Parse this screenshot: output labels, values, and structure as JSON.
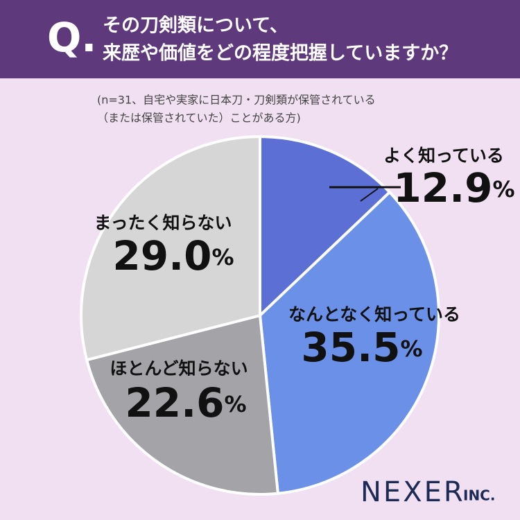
{
  "chart_data": {
    "type": "pie",
    "title_badge": "Q.",
    "title": [
      "その刀剣類について、",
      "来歴や価値をどの程度把握していますか？"
    ],
    "note": [
      "(n=31、自宅や実家に日本刀・刀剣類が保管されている",
      "（または保管されていた）ことがある方)"
    ],
    "categories": [
      "よく知っている",
      "なんとなく知っている",
      "ほとんど知らない",
      "まったく知らない"
    ],
    "values": [
      12.9,
      35.5,
      22.6,
      29.0
    ],
    "value_labels": [
      "12.9",
      "35.5",
      "22.6",
      "29.0"
    ],
    "unit": "%",
    "colors": [
      "#5b6fd4",
      "#6a90e8",
      "#a4a4a8",
      "#d6d6d6"
    ],
    "brand": "NEXER",
    "brand_suffix": "INC."
  }
}
